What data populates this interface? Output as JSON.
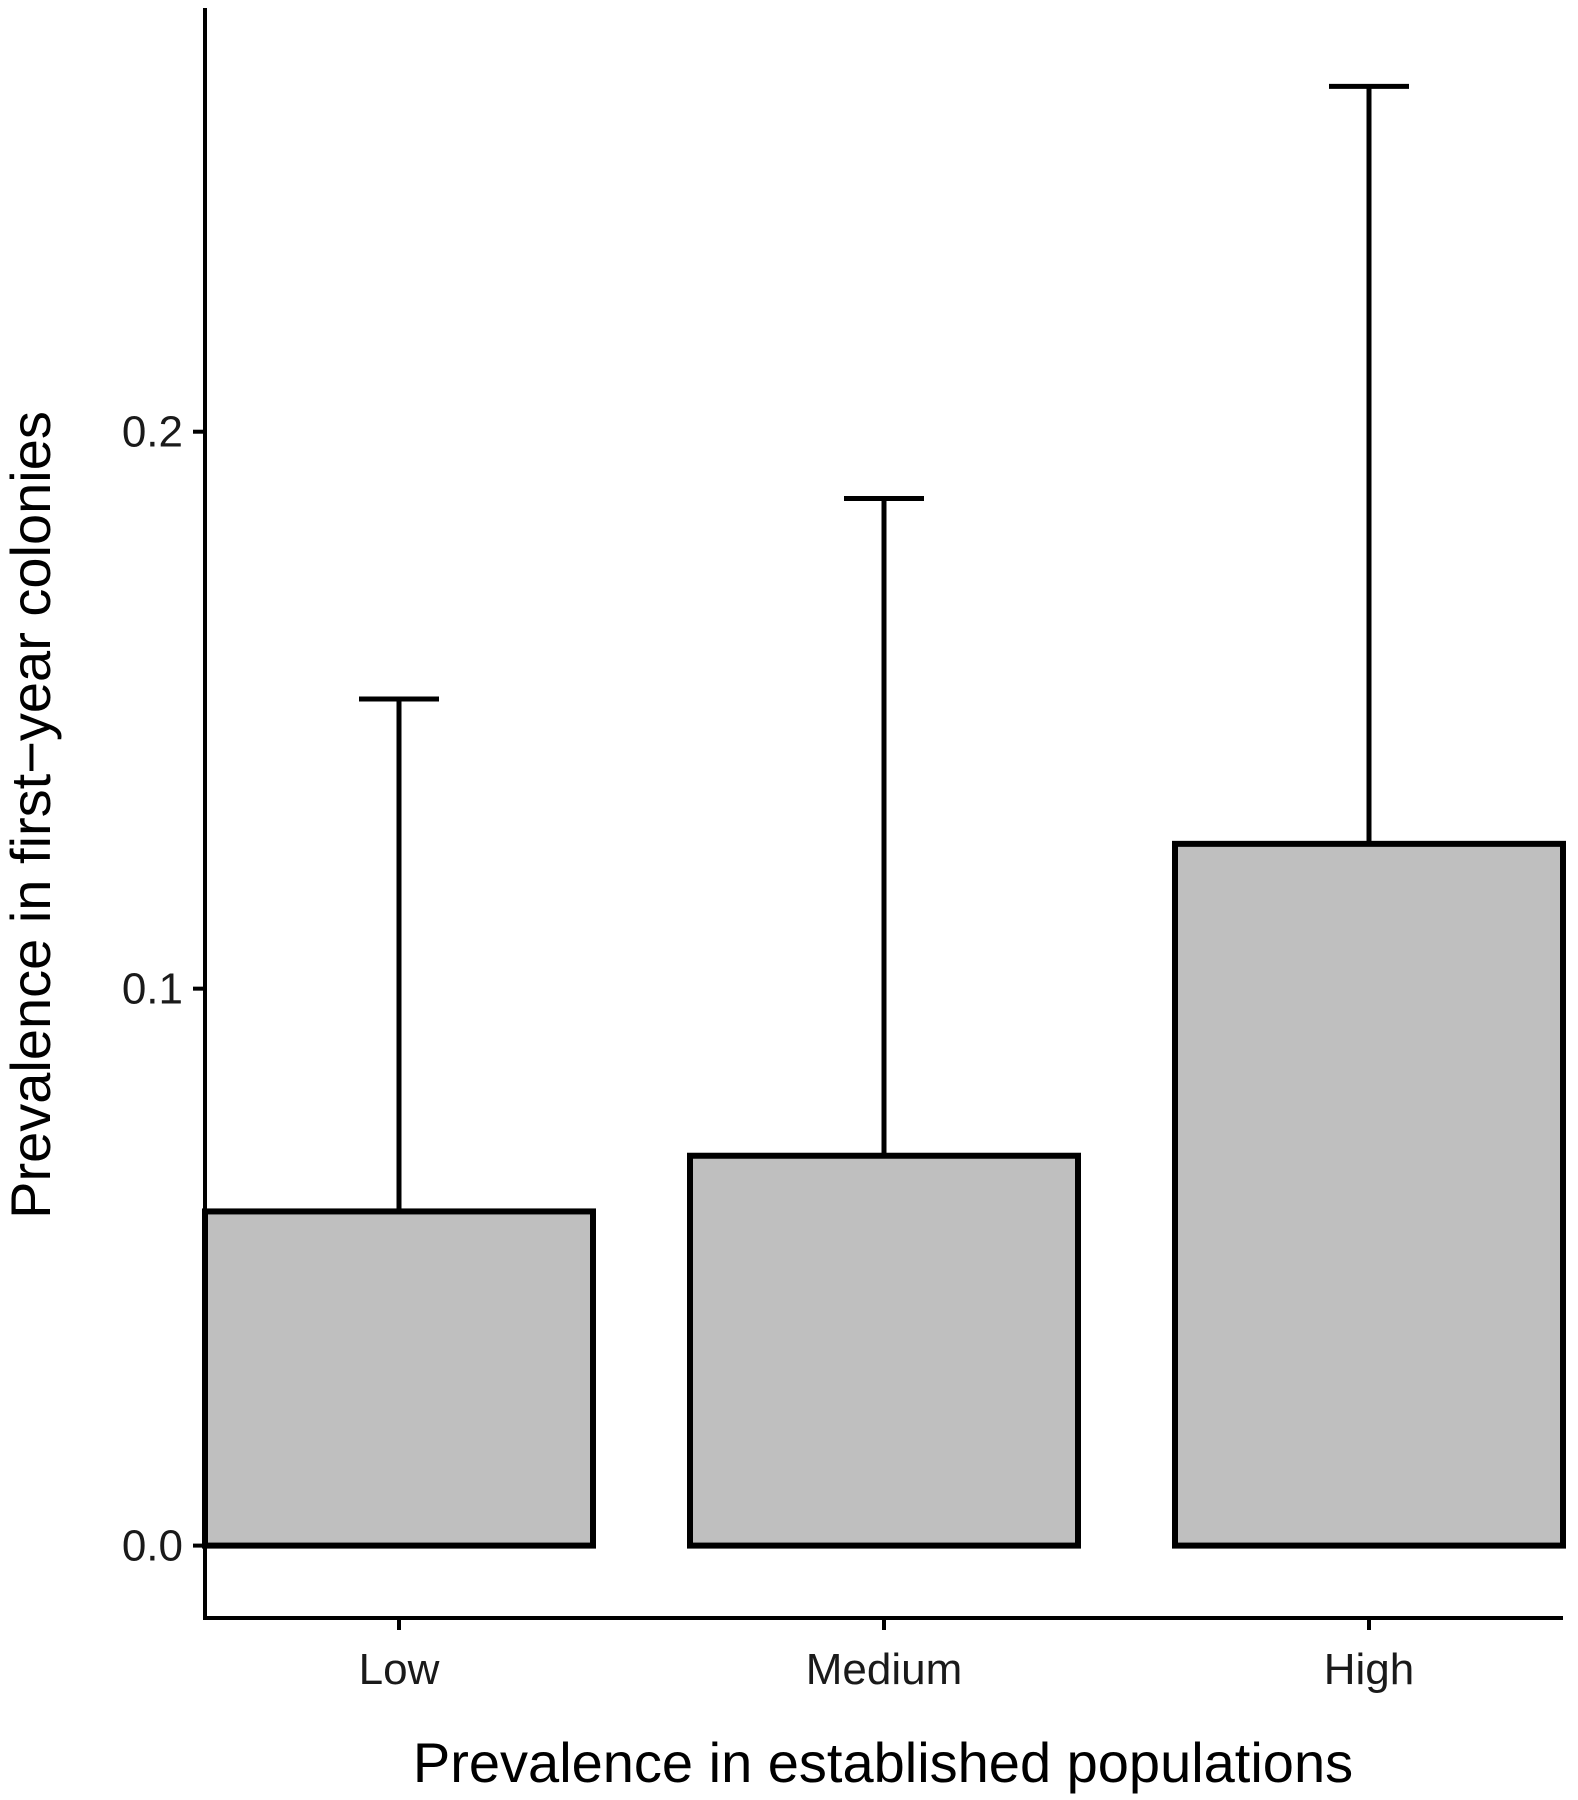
{
  "chart_data": {
    "type": "bar",
    "title": "",
    "xlabel": "Prevalence in established populations",
    "ylabel": "Prevalence in first−year colonies",
    "categories": [
      "Low",
      "Medium",
      "High"
    ],
    "values": [
      0.06,
      0.07,
      0.126
    ],
    "error_upper": [
      0.152,
      0.188,
      0.262
    ],
    "ylim": [
      -0.013,
      0.275
    ],
    "yticks": [
      0.0,
      0.1,
      0.2
    ],
    "ytick_labels": [
      "0.0",
      "0.1",
      "0.2"
    ],
    "grid": false,
    "legend": "none",
    "colors": {
      "bar_fill": "#bfbfbf",
      "bar_stroke": "#000000",
      "axis": "#000000"
    }
  }
}
